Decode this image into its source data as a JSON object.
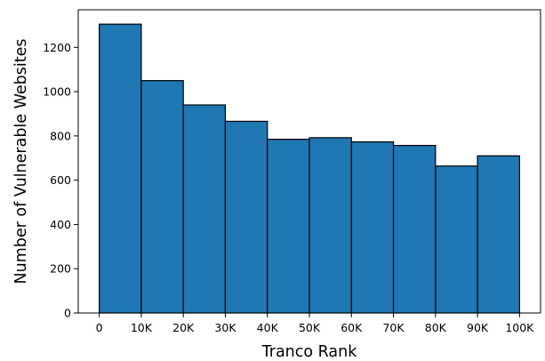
{
  "chart_data": {
    "type": "bar",
    "subtype": "histogram",
    "title": "",
    "xlabel": "Tranco Rank",
    "ylabel": "Number of Vulnerable Websites",
    "bin_edges": [
      0,
      10000,
      20000,
      30000,
      40000,
      50000,
      60000,
      70000,
      80000,
      90000,
      100000
    ],
    "values": [
      1305,
      1050,
      940,
      866,
      785,
      792,
      773,
      757,
      664,
      710
    ],
    "x_ticks": [
      0,
      10000,
      20000,
      30000,
      40000,
      50000,
      60000,
      70000,
      80000,
      90000,
      100000
    ],
    "x_tick_labels": [
      "0",
      "10K",
      "20K",
      "30K",
      "40K",
      "50K",
      "60K",
      "70K",
      "80K",
      "90K",
      "100K"
    ],
    "y_ticks": [
      0,
      200,
      400,
      600,
      800,
      1000,
      1200
    ],
    "y_tick_labels": [
      "0",
      "200",
      "400",
      "600",
      "800",
      "1000",
      "1200"
    ],
    "xlim": [
      -5000,
      105000
    ],
    "ylim": [
      0,
      1370
    ],
    "grid": false,
    "legend": "none",
    "bar_color": "#1f77b4",
    "edge_color": "#000000"
  }
}
